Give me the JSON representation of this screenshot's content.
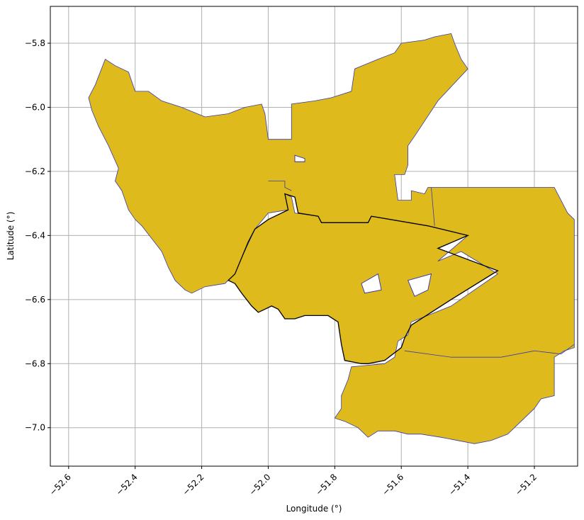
{
  "chart_data": {
    "type": "map",
    "xlabel": "Longitude (°)",
    "ylabel": "Latitude (°)",
    "xlim": [
      -52.655,
      -51.07
    ],
    "ylim": [
      -7.12,
      -5.685
    ],
    "grid": true,
    "x_ticks": [
      -52.6,
      -52.4,
      -52.2,
      -52.0,
      -51.8,
      -51.6,
      -51.4,
      -51.2
    ],
    "x_tick_labels": [
      "−52.6",
      "−52.4",
      "−52.2",
      "−52.0",
      "−51.8",
      "−51.6",
      "−51.4",
      "−51.2"
    ],
    "y_ticks": [
      -5.8,
      -6.0,
      -6.2,
      -6.4,
      -6.6,
      -6.8,
      -7.0
    ],
    "y_tick_labels": [
      "−5.8",
      "−6.0",
      "−6.2",
      "−6.4",
      "−6.6",
      "−6.8",
      "−7.0"
    ],
    "colors": {
      "fill": "#dfba1d",
      "border": "#3a3aa8",
      "outline": "#000000",
      "grid": "#b0b0b0"
    },
    "surrounding_region": [
      [
        -52.52,
        -5.93
      ],
      [
        -52.49,
        -5.85
      ],
      [
        -52.46,
        -5.87
      ],
      [
        -52.42,
        -5.89
      ],
      [
        -52.4,
        -5.95
      ],
      [
        -52.36,
        -5.95
      ],
      [
        -52.32,
        -5.98
      ],
      [
        -52.26,
        -6.0
      ],
      [
        -52.19,
        -6.03
      ],
      [
        -52.12,
        -6.02
      ],
      [
        -52.07,
        -6.0
      ],
      [
        -52.02,
        -5.99
      ],
      [
        -52.01,
        -6.02
      ],
      [
        -52.0,
        -6.1
      ],
      [
        -51.93,
        -6.1
      ],
      [
        -51.93,
        -5.99
      ],
      [
        -51.86,
        -5.98
      ],
      [
        -51.81,
        -5.97
      ],
      [
        -51.75,
        -5.95
      ],
      [
        -51.74,
        -5.88
      ],
      [
        -51.67,
        -5.85
      ],
      [
        -51.62,
        -5.83
      ],
      [
        -51.6,
        -5.8
      ],
      [
        -51.53,
        -5.79
      ],
      [
        -51.5,
        -5.78
      ],
      [
        -51.45,
        -5.77
      ],
      [
        -51.44,
        -5.8
      ],
      [
        -51.42,
        -5.85
      ],
      [
        -51.4,
        -5.88
      ],
      [
        -51.49,
        -5.98
      ],
      [
        -51.56,
        -6.09
      ],
      [
        -51.58,
        -6.12
      ],
      [
        -51.58,
        -6.18
      ],
      [
        -51.59,
        -6.21
      ],
      [
        -51.62,
        -6.21
      ],
      [
        -51.61,
        -6.29
      ],
      [
        -51.57,
        -6.29
      ],
      [
        -51.57,
        -6.26
      ],
      [
        -51.53,
        -6.27
      ],
      [
        -51.52,
        -6.25
      ],
      [
        -51.14,
        -6.25
      ],
      [
        -51.1,
        -6.33
      ],
      [
        -51.08,
        -6.35
      ],
      [
        -51.08,
        -6.75
      ],
      [
        -51.11,
        -6.76
      ],
      [
        -51.14,
        -6.78
      ],
      [
        -51.14,
        -6.9
      ],
      [
        -51.18,
        -6.91
      ],
      [
        -51.2,
        -6.94
      ],
      [
        -51.23,
        -6.97
      ],
      [
        -51.26,
        -7.0
      ],
      [
        -51.28,
        -7.02
      ],
      [
        -51.33,
        -7.04
      ],
      [
        -51.38,
        -7.05
      ],
      [
        -51.43,
        -7.04
      ],
      [
        -51.48,
        -7.03
      ],
      [
        -51.54,
        -7.02
      ],
      [
        -51.58,
        -7.02
      ],
      [
        -51.62,
        -7.01
      ],
      [
        -51.67,
        -7.01
      ],
      [
        -51.7,
        -7.03
      ],
      [
        -51.73,
        -7.0
      ],
      [
        -51.77,
        -6.98
      ],
      [
        -51.8,
        -6.97
      ],
      [
        -51.78,
        -6.94
      ],
      [
        -51.78,
        -6.9
      ],
      [
        -51.76,
        -6.85
      ],
      [
        -51.75,
        -6.81
      ],
      [
        -51.65,
        -6.8
      ],
      [
        -51.62,
        -6.78
      ],
      [
        -51.61,
        -6.73
      ],
      [
        -51.58,
        -6.71
      ],
      [
        -51.57,
        -6.67
      ],
      [
        -51.45,
        -6.62
      ],
      [
        -51.31,
        -6.52
      ],
      [
        -51.42,
        -6.45
      ],
      [
        -51.49,
        -6.48
      ],
      [
        -51.4,
        -6.4
      ],
      [
        -51.52,
        -6.37
      ],
      [
        -51.69,
        -6.34
      ],
      [
        -51.7,
        -6.36
      ],
      [
        -51.84,
        -6.36
      ],
      [
        -51.85,
        -6.34
      ],
      [
        -51.92,
        -6.33
      ],
      [
        -51.93,
        -6.28
      ],
      [
        -51.95,
        -6.27
      ],
      [
        -51.94,
        -6.32
      ],
      [
        -52.0,
        -6.33
      ],
      [
        -52.04,
        -6.38
      ],
      [
        -52.08,
        -6.47
      ],
      [
        -52.1,
        -6.52
      ],
      [
        -52.12,
        -6.54
      ],
      [
        -52.13,
        -6.55
      ],
      [
        -52.19,
        -6.56
      ],
      [
        -52.23,
        -6.58
      ],
      [
        -52.25,
        -6.57
      ],
      [
        -52.28,
        -6.54
      ],
      [
        -52.3,
        -6.5
      ],
      [
        -52.32,
        -6.45
      ],
      [
        -52.35,
        -6.41
      ],
      [
        -52.38,
        -6.37
      ],
      [
        -52.4,
        -6.35
      ],
      [
        -52.42,
        -6.32
      ],
      [
        -52.44,
        -6.26
      ],
      [
        -52.46,
        -6.23
      ],
      [
        -52.45,
        -6.19
      ],
      [
        -52.48,
        -6.12
      ],
      [
        -52.51,
        -6.06
      ],
      [
        -52.53,
        -6.01
      ],
      [
        -52.54,
        -5.97
      ]
    ],
    "main_region": [
      [
        -51.95,
        -6.27
      ],
      [
        -51.92,
        -6.28
      ],
      [
        -51.91,
        -6.33
      ],
      [
        -51.85,
        -6.34
      ],
      [
        -51.84,
        -6.36
      ],
      [
        -51.7,
        -6.36
      ],
      [
        -51.69,
        -6.34
      ],
      [
        -51.52,
        -6.37
      ],
      [
        -51.4,
        -6.4
      ],
      [
        -51.49,
        -6.44
      ],
      [
        -51.31,
        -6.51
      ],
      [
        -51.45,
        -6.6
      ],
      [
        -51.57,
        -6.68
      ],
      [
        -51.59,
        -6.72
      ],
      [
        -51.6,
        -6.75
      ],
      [
        -51.65,
        -6.79
      ],
      [
        -51.7,
        -6.8
      ],
      [
        -51.72,
        -6.8
      ],
      [
        -51.77,
        -6.79
      ],
      [
        -51.78,
        -6.74
      ],
      [
        -51.79,
        -6.67
      ],
      [
        -51.82,
        -6.65
      ],
      [
        -51.89,
        -6.65
      ],
      [
        -51.92,
        -6.66
      ],
      [
        -51.95,
        -6.66
      ],
      [
        -51.97,
        -6.63
      ],
      [
        -51.99,
        -6.62
      ],
      [
        -52.01,
        -6.63
      ],
      [
        -52.03,
        -6.64
      ],
      [
        -52.05,
        -6.62
      ],
      [
        -52.08,
        -6.58
      ],
      [
        -52.1,
        -6.55
      ],
      [
        -52.12,
        -6.54
      ],
      [
        -52.11,
        -6.53
      ],
      [
        -52.1,
        -6.52
      ],
      [
        -52.08,
        -6.47
      ],
      [
        -52.06,
        -6.42
      ],
      [
        -52.04,
        -6.38
      ],
      [
        -52.0,
        -6.35
      ],
      [
        -51.94,
        -6.32
      ]
    ],
    "holes": [
      [
        [
          -51.72,
          -6.55
        ],
        [
          -51.67,
          -6.52
        ],
        [
          -51.66,
          -6.57
        ],
        [
          -51.71,
          -6.58
        ]
      ],
      [
        [
          -51.58,
          -6.54
        ],
        [
          -51.51,
          -6.52
        ],
        [
          -51.52,
          -6.57
        ],
        [
          -51.56,
          -6.59
        ]
      ],
      [
        [
          -51.92,
          -6.15
        ],
        [
          -51.89,
          -6.16
        ],
        [
          -51.89,
          -6.17
        ],
        [
          -51.92,
          -6.17
        ]
      ]
    ],
    "internal_borders": [
      [
        [
          -52.0,
          -6.23
        ],
        [
          -51.95,
          -6.23
        ],
        [
          -51.95,
          -6.25
        ],
        [
          -51.93,
          -6.26
        ]
      ],
      [
        [
          -51.51,
          -6.25
        ],
        [
          -51.5,
          -6.37
        ]
      ],
      [
        [
          -51.59,
          -6.76
        ],
        [
          -51.45,
          -6.78
        ],
        [
          -51.3,
          -6.78
        ],
        [
          -51.2,
          -6.76
        ],
        [
          -51.12,
          -6.77
        ],
        [
          -51.08,
          -6.74
        ]
      ]
    ]
  }
}
